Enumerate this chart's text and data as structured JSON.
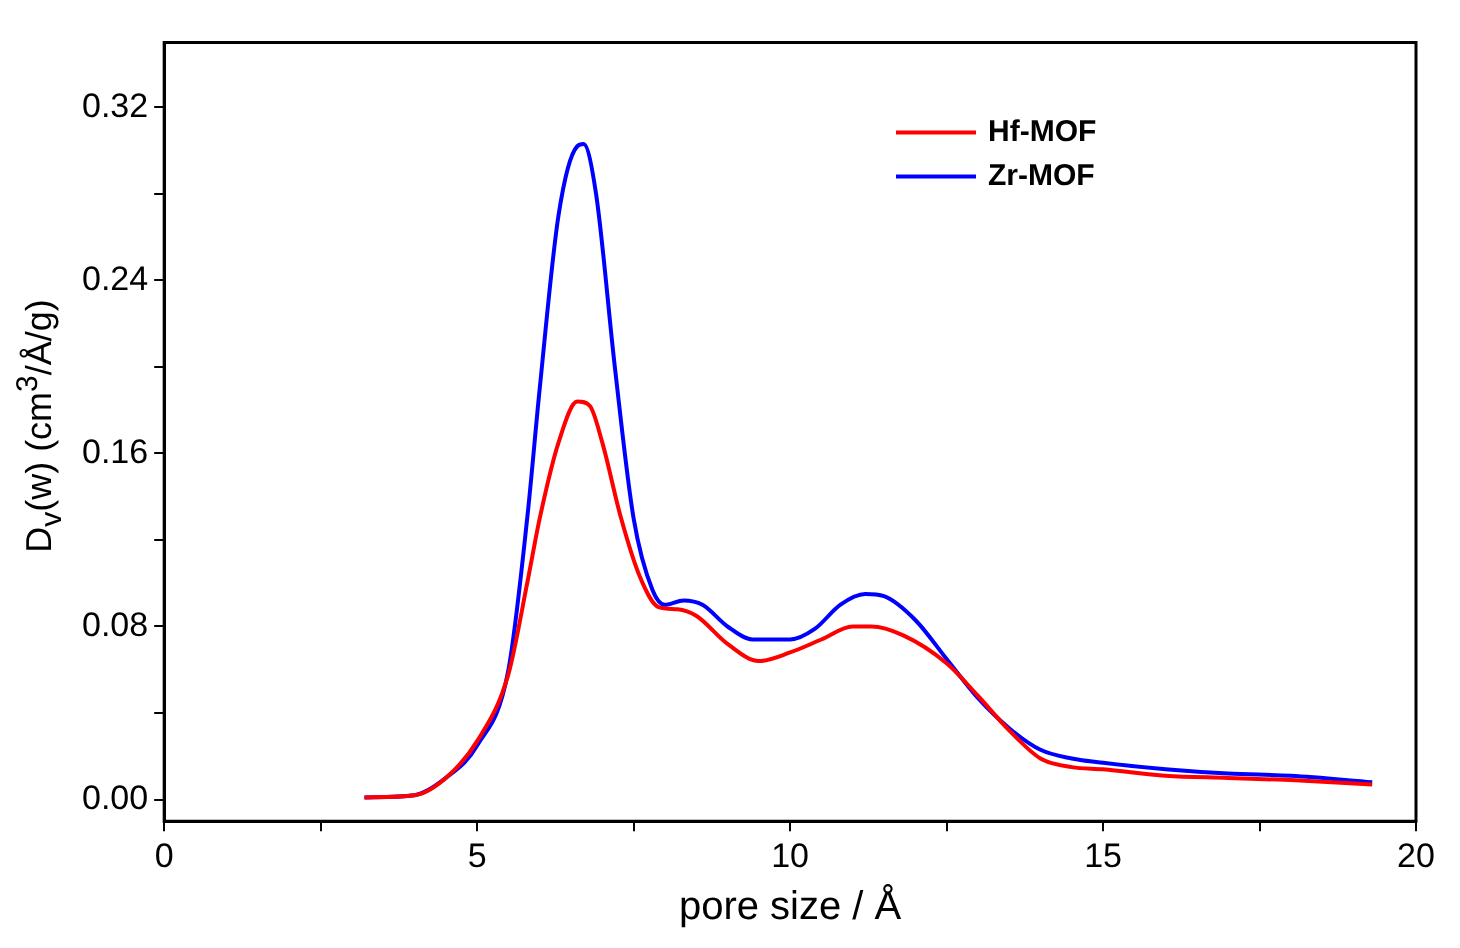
{
  "chart_data": {
    "type": "line",
    "xlabel": "pore size / Å",
    "ylabel": "D$_{v}$(w) (cm$^{3}$/Å/g)",
    "xlim": [
      0,
      20
    ],
    "ylim": [
      -0.01,
      0.35
    ],
    "xticks": [
      0,
      {
        "value": 2.5,
        "label": null
      },
      5,
      {
        "value": 7.5,
        "label": null
      },
      10,
      {
        "value": 12.5,
        "label": null
      },
      15,
      {
        "value": 17.5,
        "label": null
      },
      20
    ],
    "yticks": [
      {
        "value": 0,
        "label": "0.00"
      },
      {
        "value": 0.04,
        "label": null
      },
      {
        "value": 0.08,
        "label": "0.08"
      },
      {
        "value": 0.12,
        "label": null
      },
      {
        "value": 0.16,
        "label": "0.16"
      },
      {
        "value": 0.2,
        "label": null
      },
      {
        "value": 0.24,
        "label": "0.24"
      },
      {
        "value": 0.28,
        "label": null
      },
      {
        "value": 0.32,
        "label": "0.32"
      }
    ],
    "legend": "top right",
    "marker": "none",
    "line_style": "solid",
    "series": [
      {
        "name": "Hf-MOF",
        "color": "#ff0000",
        "x": [
          3.2,
          4,
          4.5,
          5,
          5.5,
          5.8,
          6,
          6.3,
          6.6,
          6.8,
          7,
          7.3,
          7.6,
          7.9,
          8.2,
          8.5,
          9,
          9.5,
          10,
          10.5,
          11,
          11.3,
          11.8,
          12.5,
          13,
          13.5,
          14,
          14.5,
          15,
          16,
          17,
          18,
          19.3
        ],
        "values": [
          0.001,
          0.002,
          0.01,
          0.027,
          0.058,
          0.1,
          0.13,
          0.165,
          0.184,
          0.182,
          0.165,
          0.13,
          0.103,
          0.089,
          0.088,
          0.085,
          0.072,
          0.064,
          0.068,
          0.074,
          0.08,
          0.08,
          0.076,
          0.063,
          0.048,
          0.032,
          0.019,
          0.015,
          0.014,
          0.011,
          0.01,
          0.009,
          0.007
        ]
      },
      {
        "name": "Zr-MOF",
        "color": "#0000ff",
        "x": [
          3.2,
          4,
          4.5,
          5,
          5.5,
          5.8,
          6,
          6.3,
          6.6,
          6.7,
          6.9,
          7.2,
          7.5,
          7.8,
          8,
          8.3,
          8.6,
          9,
          9.4,
          10,
          10.4,
          10.8,
          11.2,
          11.5,
          12,
          12.5,
          13,
          13.5,
          14,
          14.5,
          15,
          16,
          17,
          18,
          19.3
        ],
        "values": [
          0.001,
          0.002,
          0.01,
          0.025,
          0.06,
          0.13,
          0.19,
          0.27,
          0.302,
          0.303,
          0.28,
          0.2,
          0.13,
          0.097,
          0.09,
          0.092,
          0.09,
          0.08,
          0.074,
          0.074,
          0.079,
          0.09,
          0.095,
          0.094,
          0.083,
          0.065,
          0.047,
          0.033,
          0.023,
          0.019,
          0.017,
          0.014,
          0.012,
          0.011,
          0.008
        ]
      }
    ]
  }
}
